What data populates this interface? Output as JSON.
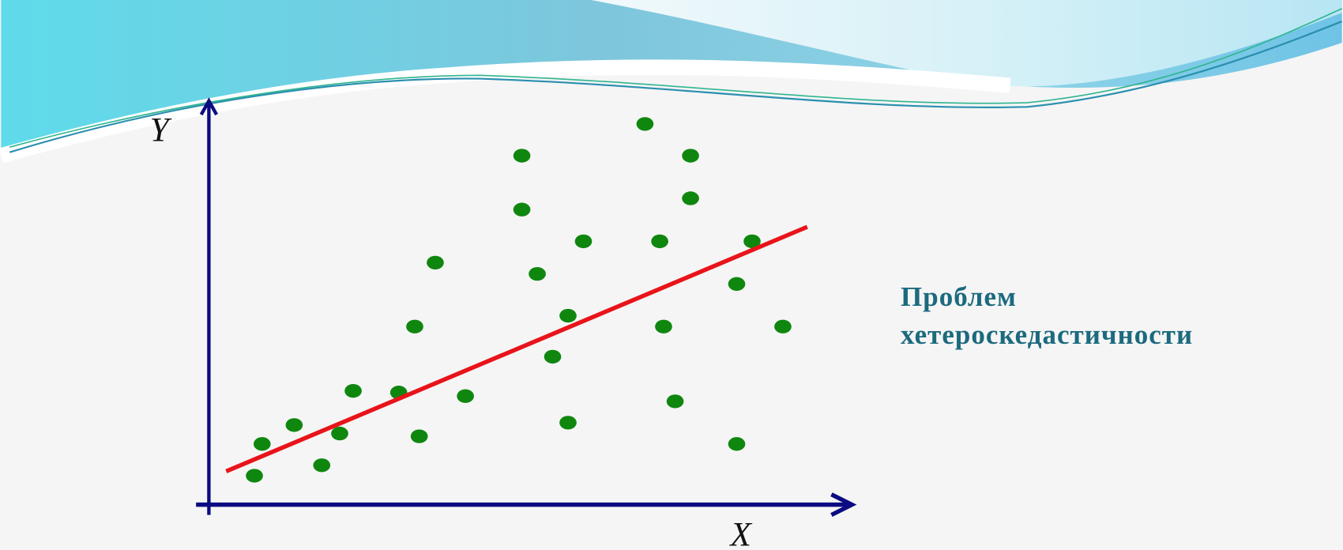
{
  "chart_data": {
    "type": "scatter",
    "x_label": "X",
    "y_label": "Y",
    "annotation": "Проблем хетероскедастичности",
    "xlim": [
      0,
      100
    ],
    "ylim": [
      0,
      100
    ],
    "color": "#0f870f",
    "axis_color": "#0b0b82",
    "x": [
      7.1,
      8.3,
      13.3,
      17.6,
      20.4,
      22.5,
      29.6,
      32.8,
      32.1,
      35.3,
      40,
      48.8,
      48.8,
      51.2,
      53.6,
      56,
      56,
      58.4,
      68,
      70.3,
      70.9,
      72.7,
      75.1,
      75.1,
      82.3,
      82.3,
      84.7,
      89.5
    ],
    "values": [
      7.2,
      15.1,
      19.8,
      9.8,
      17.7,
      28.3,
      27.9,
      17,
      44.3,
      60.2,
      27,
      86.8,
      73.4,
      57.4,
      36.8,
      47,
      20.4,
      65.5,
      94.7,
      65.5,
      44.3,
      25.7,
      86.8,
      76.2,
      54.9,
      15.1,
      65.5,
      44.3
    ],
    "line": {
      "x": [
        2.7,
        93.3
      ],
      "y": [
        8.3,
        69.1
      ],
      "color": "#e8141a"
    }
  }
}
